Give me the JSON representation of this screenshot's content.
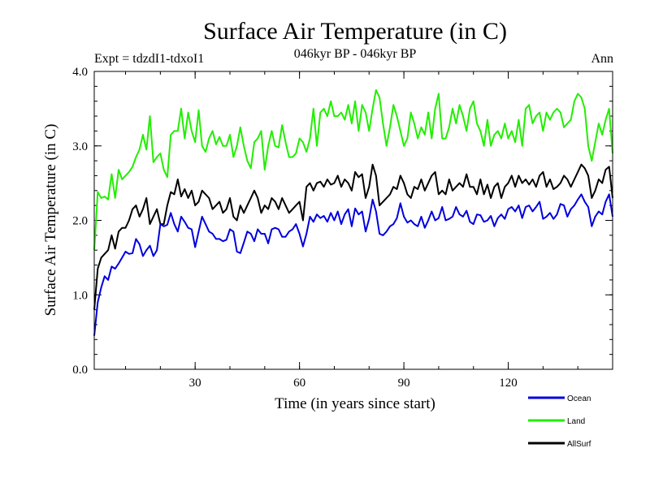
{
  "chart_data": {
    "type": "line",
    "title": "Surface Air Temperature (in C)",
    "subtitle": "046kyr BP - 046kyr BP",
    "experiment": "Expt = tdzdI1-tdxoI1",
    "season": "Ann",
    "xlabel": "Time (in years since start)",
    "ylabel": "Surface Air Temperature (in C)",
    "xlim": [
      1,
      150
    ],
    "ylim": [
      0,
      4
    ],
    "xticks": [
      30,
      60,
      90,
      120
    ],
    "xtick_labels": [
      "30",
      "60",
      "90",
      "120"
    ],
    "yticks": [
      0,
      1,
      2,
      3,
      4
    ],
    "ytick_labels": [
      "0.0",
      "1.0",
      "2.0",
      "3.0",
      "4.0"
    ],
    "grid": false,
    "legend_position": "bottom-right",
    "x": [
      1,
      2,
      3,
      4,
      5,
      6,
      7,
      8,
      9,
      10,
      11,
      12,
      13,
      14,
      15,
      16,
      17,
      18,
      19,
      20,
      21,
      22,
      23,
      24,
      25,
      26,
      27,
      28,
      29,
      30,
      31,
      32,
      33,
      34,
      35,
      36,
      37,
      38,
      39,
      40,
      41,
      42,
      43,
      44,
      45,
      46,
      47,
      48,
      49,
      50,
      51,
      52,
      53,
      54,
      55,
      56,
      57,
      58,
      59,
      60,
      61,
      62,
      63,
      64,
      65,
      66,
      67,
      68,
      69,
      70,
      71,
      72,
      73,
      74,
      75,
      76,
      77,
      78,
      79,
      80,
      81,
      82,
      83,
      84,
      85,
      86,
      87,
      88,
      89,
      90,
      91,
      92,
      93,
      94,
      95,
      96,
      97,
      98,
      99,
      100,
      101,
      102,
      103,
      104,
      105,
      106,
      107,
      108,
      109,
      110,
      111,
      112,
      113,
      114,
      115,
      116,
      117,
      118,
      119,
      120,
      121,
      122,
      123,
      124,
      125,
      126,
      127,
      128,
      129,
      130,
      131,
      132,
      133,
      134,
      135,
      136,
      137,
      138,
      139,
      140,
      141,
      142,
      143,
      144,
      145,
      146,
      147,
      148,
      149,
      150
    ],
    "series": [
      {
        "name": "Ocean",
        "color": "#0000dd",
        "values": [
          0.45,
          0.9,
          1.1,
          1.25,
          1.2,
          1.38,
          1.35,
          1.42,
          1.5,
          1.58,
          1.55,
          1.56,
          1.75,
          1.68,
          1.52,
          1.6,
          1.66,
          1.52,
          1.6,
          1.95,
          1.92,
          1.94,
          2.1,
          1.95,
          1.85,
          2.05,
          1.98,
          1.9,
          1.88,
          1.64,
          1.85,
          2.05,
          1.95,
          1.85,
          1.82,
          1.75,
          1.75,
          1.72,
          1.74,
          1.88,
          1.85,
          1.58,
          1.56,
          1.7,
          1.85,
          1.82,
          1.72,
          1.88,
          1.82,
          1.82,
          1.69,
          1.88,
          1.9,
          1.88,
          1.78,
          1.78,
          1.85,
          1.88,
          1.95,
          1.82,
          1.65,
          1.82,
          2.05,
          1.98,
          2.08,
          2.03,
          2.06,
          1.98,
          2.1,
          2.0,
          2.12,
          1.95,
          2.08,
          2.15,
          1.92,
          2.16,
          2.08,
          2.12,
          1.85,
          2.02,
          2.28,
          2.12,
          1.82,
          1.8,
          1.85,
          1.92,
          1.95,
          2.03,
          2.23,
          2.05,
          1.97,
          2.0,
          1.95,
          1.92,
          2.05,
          1.9,
          2.0,
          2.12,
          2.0,
          2.03,
          2.18,
          2.0,
          2.02,
          2.05,
          2.18,
          2.08,
          2.05,
          2.13,
          1.98,
          1.95,
          2.08,
          2.07,
          1.98,
          2.0,
          2.06,
          1.92,
          2.03,
          2.08,
          2.02,
          2.15,
          2.18,
          2.12,
          2.2,
          2.03,
          2.18,
          2.2,
          2.12,
          2.18,
          2.25,
          2.02,
          2.05,
          2.1,
          2.02,
          2.08,
          2.22,
          2.2,
          2.05,
          2.15,
          2.2,
          2.28,
          2.35,
          2.25,
          2.18,
          1.92,
          2.05,
          2.12,
          2.08,
          2.25,
          2.35,
          2.05
        ]
      },
      {
        "name": "Land",
        "color": "#22ee00",
        "values": [
          1.6,
          2.38,
          2.3,
          2.32,
          2.28,
          2.62,
          2.3,
          2.68,
          2.55,
          2.6,
          2.65,
          2.72,
          2.85,
          2.95,
          3.15,
          2.95,
          3.4,
          2.78,
          2.85,
          2.9,
          2.68,
          2.58,
          3.15,
          3.2,
          3.2,
          3.5,
          3.1,
          3.45,
          3.2,
          3.05,
          3.48,
          3.0,
          2.92,
          3.1,
          3.2,
          3.02,
          3.12,
          3.0,
          3.0,
          3.15,
          2.85,
          3.0,
          3.25,
          3.0,
          2.8,
          2.7,
          3.05,
          3.1,
          3.2,
          2.68,
          3.0,
          3.2,
          3.0,
          2.98,
          3.28,
          3.05,
          2.85,
          2.85,
          2.9,
          3.1,
          3.05,
          2.92,
          3.1,
          3.5,
          3.0,
          3.45,
          3.5,
          3.4,
          3.6,
          3.4,
          3.4,
          3.45,
          3.35,
          3.55,
          3.3,
          3.6,
          3.2,
          3.55,
          3.45,
          3.2,
          3.5,
          3.75,
          3.65,
          3.3,
          3.0,
          3.25,
          3.55,
          3.4,
          3.2,
          3.0,
          3.1,
          3.45,
          3.3,
          3.1,
          3.25,
          3.15,
          3.45,
          3.1,
          3.5,
          3.7,
          3.1,
          3.1,
          3.25,
          3.5,
          3.3,
          3.55,
          3.4,
          3.2,
          3.5,
          3.6,
          3.3,
          3.2,
          3.0,
          3.35,
          3.0,
          3.15,
          3.2,
          3.1,
          3.3,
          3.1,
          3.2,
          3.05,
          3.35,
          3.0,
          3.5,
          3.55,
          3.3,
          3.4,
          3.45,
          3.2,
          3.45,
          3.35,
          3.45,
          3.5,
          3.45,
          3.25,
          3.3,
          3.35,
          3.6,
          3.7,
          3.65,
          3.5,
          3.0,
          2.8,
          3.05,
          3.3,
          3.15,
          3.35,
          3.5,
          2.9
        ]
      },
      {
        "name": "AllSurf",
        "color": "#000000",
        "values": [
          0.8,
          1.35,
          1.5,
          1.55,
          1.6,
          1.8,
          1.62,
          1.85,
          1.9,
          1.9,
          2.0,
          2.15,
          2.2,
          2.05,
          2.15,
          2.3,
          1.95,
          2.05,
          2.15,
          1.95,
          1.95,
          2.2,
          2.38,
          2.35,
          2.55,
          2.32,
          2.42,
          2.3,
          2.4,
          2.2,
          2.25,
          2.4,
          2.35,
          2.3,
          2.15,
          2.2,
          2.25,
          2.1,
          2.15,
          2.3,
          2.05,
          2.0,
          2.2,
          2.1,
          2.2,
          2.3,
          2.4,
          2.3,
          2.1,
          2.2,
          2.15,
          2.3,
          2.25,
          2.15,
          2.3,
          2.2,
          2.1,
          2.15,
          2.2,
          2.25,
          2.0,
          2.45,
          2.5,
          2.4,
          2.5,
          2.52,
          2.45,
          2.55,
          2.48,
          2.5,
          2.6,
          2.45,
          2.55,
          2.5,
          2.4,
          2.65,
          2.58,
          2.62,
          2.3,
          2.45,
          2.75,
          2.6,
          2.2,
          2.25,
          2.3,
          2.35,
          2.45,
          2.42,
          2.6,
          2.5,
          2.35,
          2.3,
          2.45,
          2.42,
          2.55,
          2.4,
          2.5,
          2.6,
          2.65,
          2.35,
          2.4,
          2.35,
          2.55,
          2.4,
          2.45,
          2.5,
          2.45,
          2.62,
          2.45,
          2.45,
          2.35,
          2.55,
          2.35,
          2.48,
          2.3,
          2.45,
          2.5,
          2.3,
          2.45,
          2.5,
          2.6,
          2.45,
          2.6,
          2.5,
          2.55,
          2.48,
          2.55,
          2.45,
          2.6,
          2.65,
          2.45,
          2.55,
          2.42,
          2.45,
          2.5,
          2.6,
          2.55,
          2.45,
          2.55,
          2.65,
          2.75,
          2.7,
          2.6,
          2.3,
          2.4,
          2.55,
          2.5,
          2.68,
          2.72,
          2.3
        ]
      }
    ]
  }
}
